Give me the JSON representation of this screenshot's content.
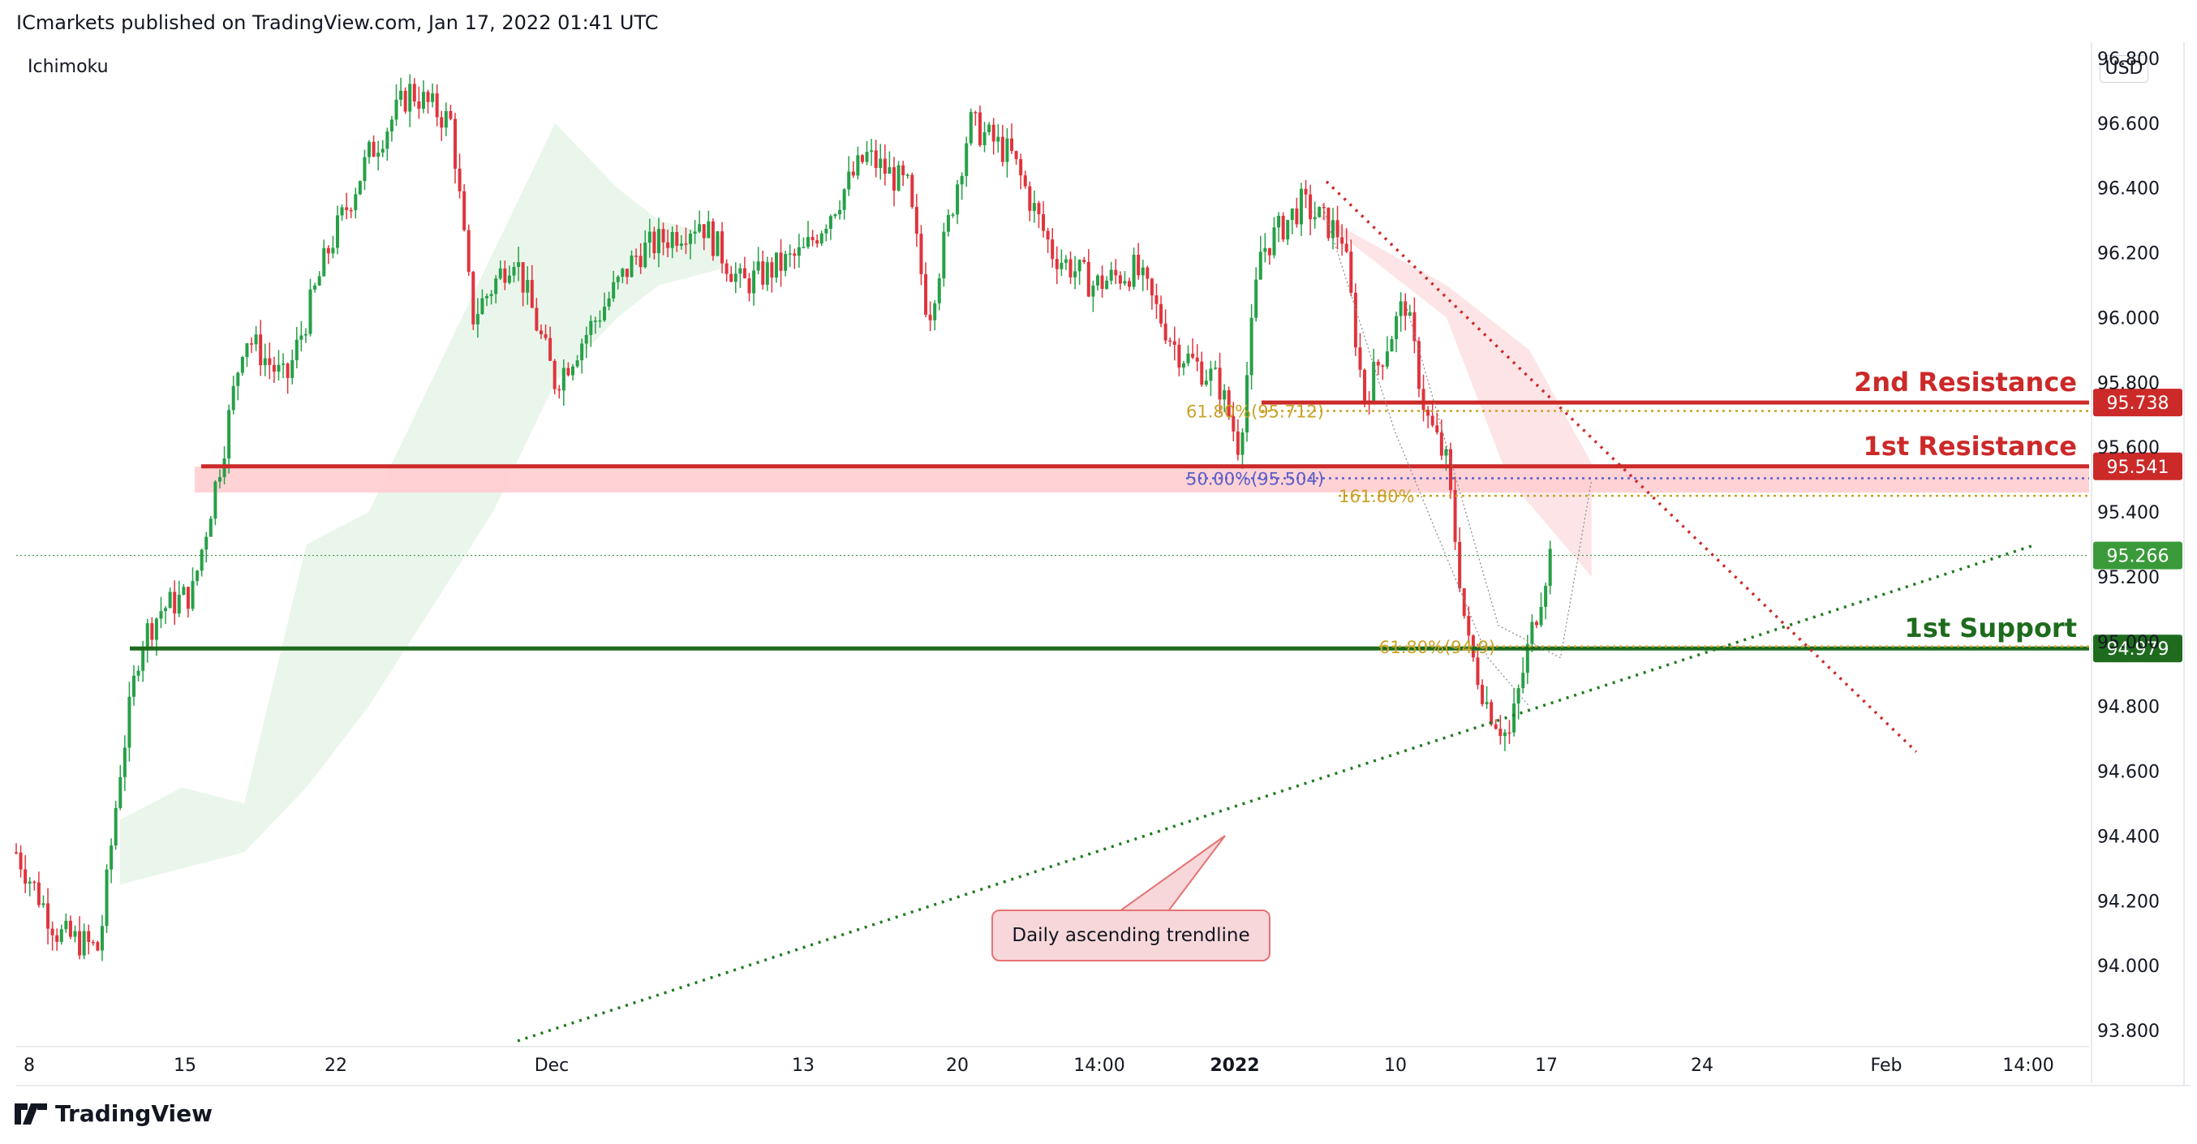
{
  "header": {
    "published_text": "ICmarkets published on TradingView.com, Jan 17, 2022 01:41 UTC",
    "indicator": "Ichimoku",
    "currency": "USD"
  },
  "footer": {
    "brand": "TradingView"
  },
  "colors": {
    "bull": "#26a047",
    "bear": "#e0343d",
    "resistance": "#cc2929",
    "support": "#1e6b1e",
    "fib": "#c9a227",
    "fib_mid": "#5b5fc7",
    "last_price": "#3a9a3a",
    "trendline": "#1e7b1e",
    "down_trendline": "#cc2929"
  },
  "chart_data": {
    "type": "candlestick",
    "symbol_scale_unit": "USD",
    "y_ticks": [
      "96.800",
      "96.600",
      "96.400",
      "96.200",
      "96.000",
      "95.800",
      "95.600",
      "95.400",
      "95.200",
      "95.000",
      "94.800",
      "94.600",
      "94.400",
      "94.200",
      "94.000",
      "93.800"
    ],
    "y_tick_values": [
      96.8,
      96.6,
      96.4,
      96.2,
      96.0,
      95.8,
      95.6,
      95.4,
      95.2,
      95.0,
      94.8,
      94.6,
      94.4,
      94.2,
      94.0,
      93.8
    ],
    "x_ticks": [
      "8",
      "15",
      "22",
      "Dec",
      "13",
      "20",
      "14:00",
      "2022",
      "10",
      "17",
      "24",
      "Feb",
      "14:00"
    ],
    "ylim": [
      93.75,
      96.85
    ],
    "last_price": "95.266",
    "levels": [
      {
        "name": "2nd Resistance",
        "value": "95.738"
      },
      {
        "name": "1st Resistance",
        "value": "95.541"
      },
      {
        "name": "1st Support",
        "value": "94.979"
      }
    ],
    "fib_labels": [
      "61.80%(95.712)",
      "50.00%(95.504)",
      "161.80%",
      "61.80%(94.9)"
    ],
    "annotation": "Daily ascending trendline",
    "series_note": "Approximate close path (data units)",
    "close_path": [
      {
        "x": 0.0,
        "y": 94.35
      },
      {
        "x": 0.02,
        "y": 94.1
      },
      {
        "x": 0.04,
        "y": 94.05
      },
      {
        "x": 0.05,
        "y": 94.6
      },
      {
        "x": 0.06,
        "y": 95.0
      },
      {
        "x": 0.07,
        "y": 95.1
      },
      {
        "x": 0.085,
        "y": 95.15
      },
      {
        "x": 0.1,
        "y": 95.6
      },
      {
        "x": 0.11,
        "y": 95.95
      },
      {
        "x": 0.13,
        "y": 95.8
      },
      {
        "x": 0.15,
        "y": 96.2
      },
      {
        "x": 0.17,
        "y": 96.5
      },
      {
        "x": 0.19,
        "y": 96.7
      },
      {
        "x": 0.21,
        "y": 96.6
      },
      {
        "x": 0.22,
        "y": 96.0
      },
      {
        "x": 0.24,
        "y": 96.2
      },
      {
        "x": 0.26,
        "y": 95.8
      },
      {
        "x": 0.28,
        "y": 96.0
      },
      {
        "x": 0.3,
        "y": 96.2
      },
      {
        "x": 0.33,
        "y": 96.3
      },
      {
        "x": 0.35,
        "y": 96.1
      },
      {
        "x": 0.38,
        "y": 96.2
      },
      {
        "x": 0.41,
        "y": 96.5
      },
      {
        "x": 0.43,
        "y": 96.4
      },
      {
        "x": 0.44,
        "y": 96.0
      },
      {
        "x": 0.46,
        "y": 96.6
      },
      {
        "x": 0.48,
        "y": 96.5
      },
      {
        "x": 0.5,
        "y": 96.2
      },
      {
        "x": 0.52,
        "y": 96.1
      },
      {
        "x": 0.54,
        "y": 96.15
      },
      {
        "x": 0.56,
        "y": 95.9
      },
      {
        "x": 0.58,
        "y": 95.8
      },
      {
        "x": 0.59,
        "y": 95.6
      },
      {
        "x": 0.6,
        "y": 96.2
      },
      {
        "x": 0.62,
        "y": 96.35
      },
      {
        "x": 0.64,
        "y": 96.25
      },
      {
        "x": 0.65,
        "y": 95.75
      },
      {
        "x": 0.67,
        "y": 96.05
      },
      {
        "x": 0.68,
        "y": 95.7
      },
      {
        "x": 0.69,
        "y": 95.55
      },
      {
        "x": 0.7,
        "y": 95.0
      },
      {
        "x": 0.71,
        "y": 94.8
      },
      {
        "x": 0.72,
        "y": 94.7
      },
      {
        "x": 0.73,
        "y": 95.0
      },
      {
        "x": 0.74,
        "y": 95.27
      }
    ]
  }
}
